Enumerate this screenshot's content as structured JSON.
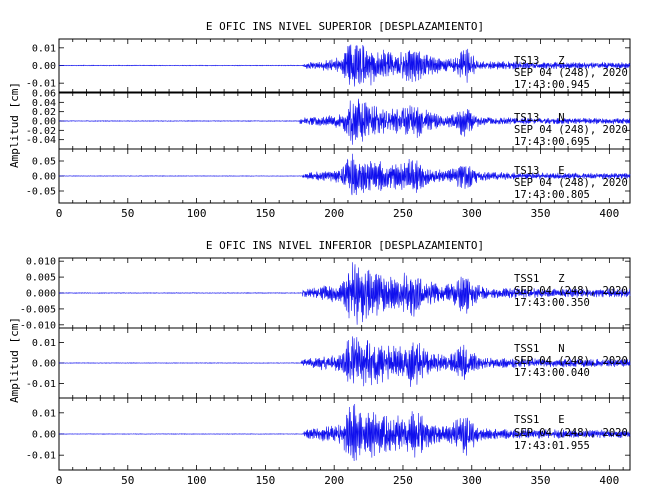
{
  "colors": {
    "trace": "#1010ee",
    "axes": "#000000",
    "background": "#ffffff"
  },
  "chart_data": [
    {
      "type": "line",
      "title": "E OFIC INS NIVEL SUPERIOR [DESPLAZAMIENTO]",
      "ylabel": "Amplitud [cm]",
      "xlim": [
        0,
        415
      ],
      "xticks": [
        "0",
        "50",
        "100",
        "150",
        "200",
        "250",
        "300",
        "350",
        "400"
      ],
      "xtick_values": [
        0,
        50,
        100,
        150,
        200,
        250,
        300,
        350,
        400
      ],
      "grid": false,
      "traces": [
        {
          "id": "sup-z",
          "label_line1": "TS13   Z",
          "label_line2": "SEP 04 (248), 2020",
          "label_line3": "17:43:00.945",
          "ylim": [
            -0.015,
            0.015
          ],
          "yticks": [
            "0.01",
            "0.00",
            "-0.01"
          ],
          "ytick_values": [
            0.01,
            0.0,
            -0.01
          ],
          "onset": 178,
          "peak": 0.016,
          "noise": 0.0002,
          "seed": 11
        },
        {
          "id": "sup-n",
          "label_line1": "TS13   N",
          "label_line2": "SEP 04 (248), 2020",
          "label_line3": "17:43:00.695",
          "ylim": [
            -0.06,
            0.06
          ],
          "yticks": [
            "0.06",
            "0.04",
            "0.02",
            "0.00",
            "-0.02",
            "-0.04"
          ],
          "ytick_values": [
            0.06,
            0.04,
            0.02,
            0.0,
            -0.02,
            -0.04
          ],
          "onset": 175,
          "peak": 0.055,
          "noise": 0.0008,
          "seed": 23
        },
        {
          "id": "sup-e",
          "label_line1": "TS13   E",
          "label_line2": "SEP 04 (248), 2020",
          "label_line3": "17:43:00.805",
          "ylim": [
            -0.09,
            0.09
          ],
          "yticks": [
            "0.05",
            "0.00",
            "-0.05"
          ],
          "ytick_values": [
            0.05,
            0.0,
            -0.05
          ],
          "onset": 177,
          "peak": 0.085,
          "noise": 0.001,
          "seed": 37
        }
      ]
    },
    {
      "type": "line",
      "title": "E OFIC INS NIVEL INFERIOR [DESPLAZAMIENTO]",
      "ylabel": "Amplitud [cm]",
      "xlim": [
        0,
        415
      ],
      "xticks": [
        "0",
        "50",
        "100",
        "150",
        "200",
        "250",
        "300",
        "350",
        "400"
      ],
      "xtick_values": [
        0,
        50,
        100,
        150,
        200,
        250,
        300,
        350,
        400
      ],
      "grid": false,
      "traces": [
        {
          "id": "inf-z",
          "label_line1": "TSS1   Z",
          "label_line2": "SEP 04 (248), 2020",
          "label_line3": "17:43:00.350",
          "ylim": [
            -0.011,
            0.011
          ],
          "yticks": [
            "0.010",
            "0.005",
            "0.000",
            "-0.005",
            "-0.010"
          ],
          "ytick_values": [
            0.01,
            0.005,
            0.0,
            -0.005,
            -0.01
          ],
          "onset": 177,
          "peak": 0.0115,
          "noise": 0.00012,
          "seed": 53
        },
        {
          "id": "inf-n",
          "label_line1": "TSS1   N",
          "label_line2": "SEP 04 (248), 2020",
          "label_line3": "17:43:00.040",
          "ylim": [
            -0.017,
            0.017
          ],
          "yticks": [
            "0.01",
            "0.00",
            "-0.01"
          ],
          "ytick_values": [
            0.01,
            0.0,
            -0.01
          ],
          "onset": 176,
          "peak": 0.0165,
          "noise": 0.00015,
          "seed": 71
        },
        {
          "id": "inf-e",
          "label_line1": "TSS1   E",
          "label_line2": "SEP 04 (248), 2020",
          "label_line3": "17:43:01.955",
          "ylim": [
            -0.017,
            0.017
          ],
          "yticks": [
            "0.01",
            "0.00",
            "-0.01"
          ],
          "ytick_values": [
            0.01,
            0.0,
            -0.01
          ],
          "onset": 178,
          "peak": 0.0165,
          "noise": 0.00015,
          "seed": 89
        }
      ]
    }
  ]
}
